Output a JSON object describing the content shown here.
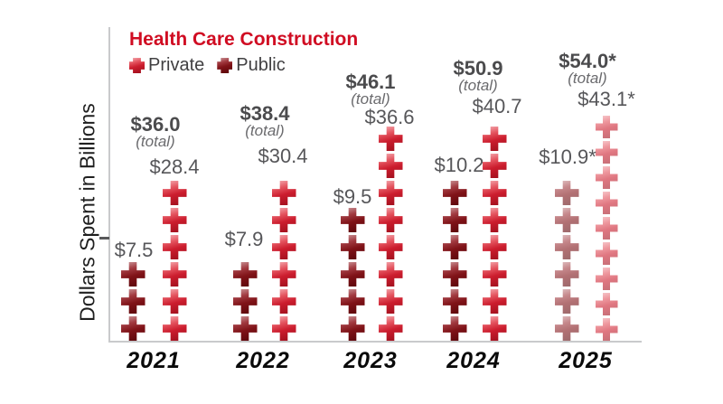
{
  "title": "Health Care Construction",
  "legend": {
    "items": [
      {
        "label": "Private",
        "color": "#cc1d2e"
      },
      {
        "label": "Public",
        "color": "#801318"
      }
    ]
  },
  "y_axis_label": "Dollars Spent in Billions",
  "chart_data": {
    "type": "bar",
    "subtype": "pictograph-medical-crosses",
    "title": "Health Care Construction",
    "ylabel": "Dollars Spent in Billions",
    "categories": [
      "2021",
      "2022",
      "2023",
      "2024",
      "2025"
    ],
    "series": [
      {
        "name": "Public",
        "values": [
          7.5,
          7.9,
          9.5,
          10.2,
          10.9
        ],
        "value_labels": [
          "$7.5",
          "$7.9",
          "$9.5",
          "$10.2",
          "$10.9*"
        ],
        "icon_counts": [
          3,
          3,
          5,
          6,
          6
        ],
        "color": "#801318"
      },
      {
        "name": "Private",
        "values": [
          28.4,
          30.4,
          36.6,
          40.7,
          43.1
        ],
        "value_labels": [
          "$28.4",
          "$30.4",
          "$36.6",
          "$40.7",
          "$43.1*"
        ],
        "icon_counts": [
          6,
          6,
          8,
          8,
          9
        ],
        "color": "#cc1d2e"
      }
    ],
    "totals": {
      "values": [
        36.0,
        38.4,
        46.1,
        50.9,
        54.0
      ],
      "value_labels": [
        "$36.0",
        "$38.4",
        "$46.1",
        "$50.9",
        "$54.0*"
      ],
      "sublabel": "(total)"
    },
    "icon": "medical-cross",
    "legend_position": "top-left",
    "grid": false,
    "faded_categories": [
      "2025"
    ]
  }
}
